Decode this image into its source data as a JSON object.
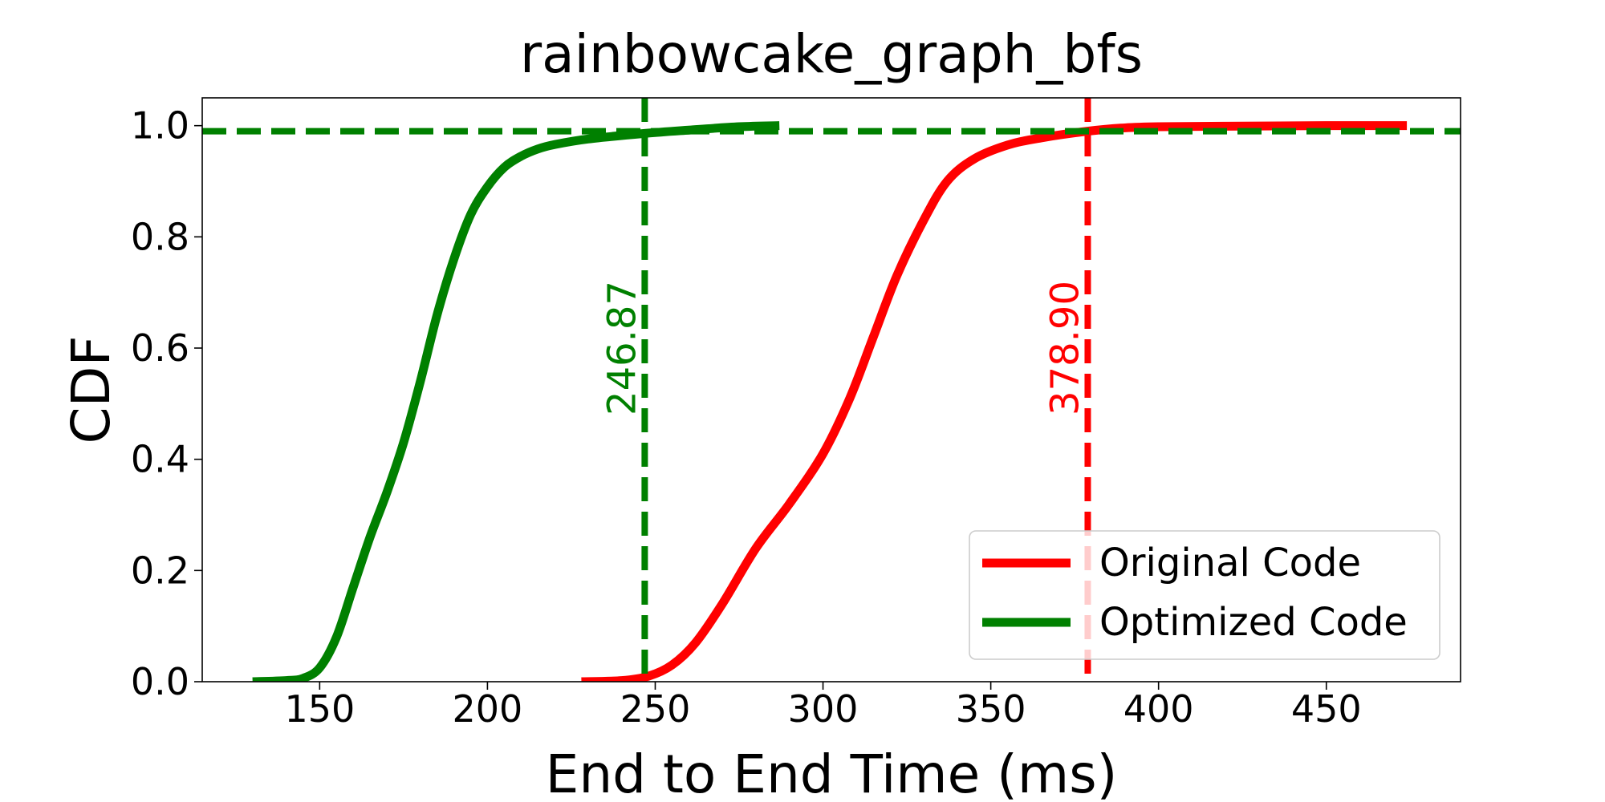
{
  "chart_data": {
    "type": "line",
    "title": "rainbowcake_graph_bfs",
    "xlabel": "End to End Time (ms)",
    "ylabel": "CDF",
    "xlim": [
      115,
      490
    ],
    "ylim": [
      0,
      1.05
    ],
    "xticks": [
      150,
      200,
      250,
      300,
      350,
      400,
      450
    ],
    "yticks": [
      0.0,
      0.2,
      0.4,
      0.6,
      0.8,
      1.0
    ],
    "xtick_labels": [
      "150",
      "200",
      "250",
      "300",
      "350",
      "400",
      "450"
    ],
    "ytick_labels": [
      "0.0",
      "0.2",
      "0.4",
      "0.6",
      "0.8",
      "1.0"
    ],
    "grid": false,
    "legend_position": "lower-right",
    "series": [
      {
        "name": "Original Code",
        "color": "#ff0000",
        "x": [
          228,
          240,
          248,
          255,
          262,
          270,
          280,
          290,
          300,
          308,
          315,
          322,
          330,
          337,
          345,
          355,
          365,
          378.9,
          390,
          400,
          420,
          450,
          474
        ],
        "y": [
          0.0,
          0.002,
          0.01,
          0.03,
          0.07,
          0.14,
          0.24,
          0.32,
          0.41,
          0.51,
          0.62,
          0.73,
          0.83,
          0.9,
          0.94,
          0.965,
          0.978,
          0.99,
          0.996,
          0.998,
          0.999,
          1.0,
          1.0
        ]
      },
      {
        "name": "Optimized Code",
        "color": "#008000",
        "x": [
          130,
          140,
          145,
          150,
          155,
          160,
          165,
          170,
          175,
          180,
          185,
          190,
          195,
          200,
          205,
          210,
          215,
          220,
          230,
          246.87,
          260,
          275,
          287
        ],
        "y": [
          0.0,
          0.002,
          0.006,
          0.025,
          0.08,
          0.17,
          0.26,
          0.34,
          0.43,
          0.54,
          0.66,
          0.76,
          0.84,
          0.89,
          0.925,
          0.945,
          0.958,
          0.966,
          0.976,
          0.986,
          0.992,
          0.998,
          1.0
        ]
      }
    ],
    "reference_lines": [
      {
        "orientation": "vertical",
        "value": 246.87,
        "color": "#008000",
        "style": "dashed"
      },
      {
        "orientation": "vertical",
        "value": 378.9,
        "color": "#ff0000",
        "style": "dashed"
      },
      {
        "orientation": "horizontal",
        "value": 0.99,
        "color": "#008000",
        "style": "dashed"
      }
    ],
    "annotations": [
      {
        "text": "246.87",
        "x": 246.87,
        "y": 0.6,
        "color": "#008000",
        "rotation": 90
      },
      {
        "text": "378.90",
        "x": 378.9,
        "y": 0.6,
        "color": "#ff0000",
        "rotation": 90
      }
    ]
  }
}
